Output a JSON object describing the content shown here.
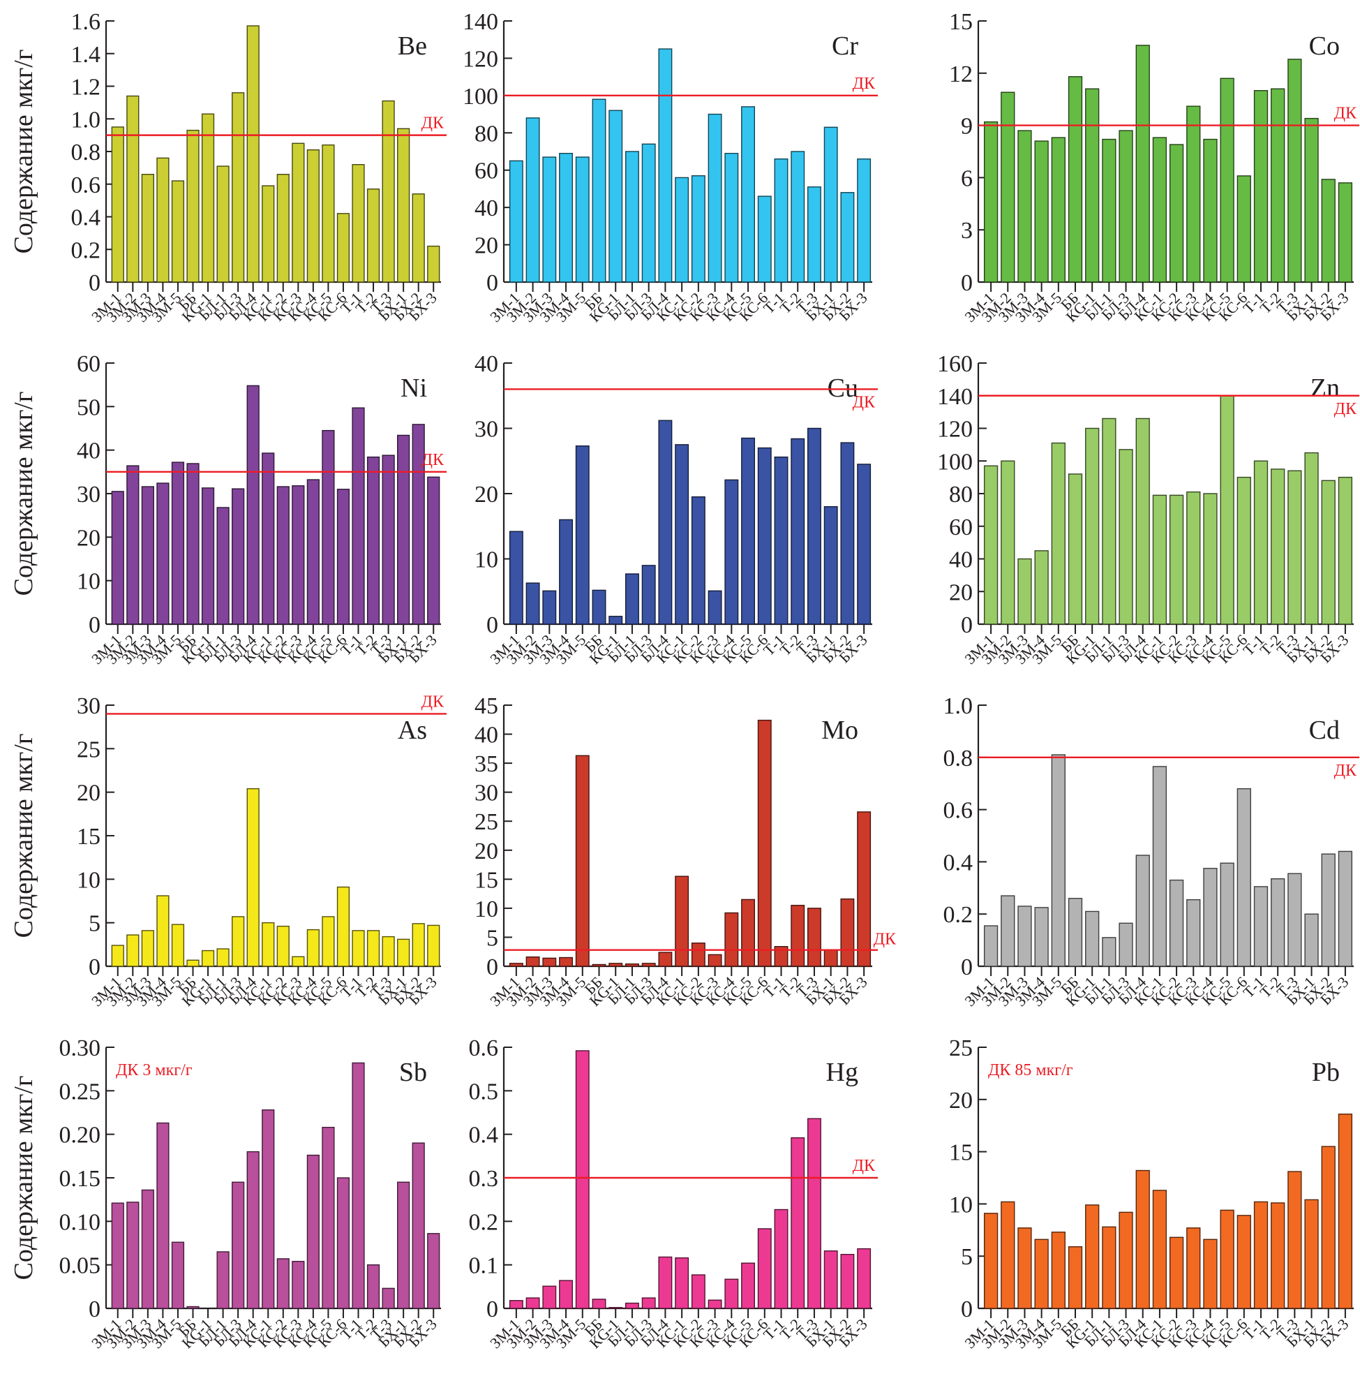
{
  "figure": {
    "ylabel": "Содержание мкг/г",
    "limit_label": "ДК"
  },
  "chart_data": [
    {
      "type": "bar",
      "title": "Be",
      "color": "#cbcf33",
      "xlabel": "",
      "ylabel": "Содержание мкг/г",
      "categories": [
        "ЗМ-1",
        "ЗМ-2",
        "ЗМ-3",
        "ЗМ-4",
        "ЗМ-5",
        "ББ",
        "КG-1",
        "БЛ-1",
        "БЛ-3",
        "БЛ-4",
        "КС-1",
        "КС-2",
        "КС-3",
        "КС-4",
        "КС-5",
        "КС-6",
        "Т-1",
        "Т-2",
        "Т-3",
        "БХ-1",
        "БХ-2",
        "БХ-3"
      ],
      "values": [
        0.95,
        1.14,
        0.66,
        0.76,
        0.62,
        0.93,
        1.03,
        0.71,
        1.16,
        1.57,
        0.59,
        0.66,
        0.85,
        0.81,
        0.84,
        0.42,
        0.72,
        0.57,
        1.11,
        0.94,
        0.54,
        0.22
      ],
      "ylim": [
        0,
        1.6
      ],
      "yticks": [
        "0",
        "0.2",
        "0.4",
        "0.6",
        "0.8",
        "1.0",
        "1.2",
        "1.4",
        "1.6"
      ],
      "limit": {
        "value": 0.9,
        "label": "ДК",
        "label_pos": "above-right"
      },
      "show_ylabel": true
    },
    {
      "type": "bar",
      "title": "Cr",
      "color": "#33c4f0",
      "xlabel": "",
      "ylabel": "",
      "categories": [
        "ЗМ-1",
        "ЗМ-2",
        "ЗМ-3",
        "ЗМ-4",
        "ЗМ-5",
        "ББ",
        "КG-1",
        "БЛ-1",
        "БЛ-3",
        "БЛ-4",
        "КС-1",
        "КС-2",
        "КС-3",
        "КС-4",
        "КС-5",
        "КС-6",
        "Т-1",
        "Т-2",
        "Т-3",
        "БХ-1",
        "БХ-2",
        "БХ-3"
      ],
      "values": [
        65,
        88,
        67,
        69,
        67,
        98,
        92,
        70,
        74,
        125,
        56,
        57,
        90,
        69,
        94,
        46,
        66,
        70,
        51,
        83,
        48,
        66
      ],
      "ylim": [
        0,
        140
      ],
      "yticks": [
        "0",
        "20",
        "40",
        "60",
        "80",
        "100",
        "120",
        "140"
      ],
      "limit": {
        "value": 100,
        "label": "ДК",
        "label_pos": "above-right"
      },
      "show_ylabel": false
    },
    {
      "type": "bar",
      "title": "Co",
      "color": "#66bb44",
      "xlabel": "",
      "ylabel": "",
      "categories": [
        "ЗМ-1",
        "ЗМ-2",
        "ЗМ-3",
        "ЗМ-4",
        "ЗМ-5",
        "ББ",
        "КG-1",
        "БЛ-1",
        "БЛ-3",
        "БЛ-4",
        "КС-1",
        "КС-2",
        "КС-3",
        "КС-4",
        "КС-5",
        "КС-6",
        "Т-1",
        "Т-2",
        "Т-3",
        "БХ-1",
        "БХ-2",
        "БХ-3"
      ],
      "values": [
        9.2,
        10.9,
        8.7,
        8.1,
        8.3,
        11.8,
        11.1,
        8.2,
        8.7,
        13.6,
        8.3,
        7.9,
        10.1,
        8.2,
        11.7,
        6.1,
        11.0,
        11.1,
        12.8,
        9.4,
        5.9,
        5.7
      ],
      "ylim": [
        0,
        15
      ],
      "yticks": [
        "0",
        "3",
        "6",
        "9",
        "12",
        "15"
      ],
      "limit": {
        "value": 9,
        "label": "ДК",
        "label_pos": "above-right"
      },
      "show_ylabel": false
    },
    {
      "type": "bar",
      "title": "Ni",
      "color": "#82449a",
      "xlabel": "",
      "ylabel": "Содержание мкг/г",
      "categories": [
        "ЗМ-1",
        "ЗМ-2",
        "ЗМ-3",
        "ЗМ-4",
        "ЗМ-5",
        "ББ",
        "КG-1",
        "БЛ-1",
        "БЛ-3",
        "БЛ-4",
        "КС-1",
        "КС-2",
        "КС-3",
        "КС-4",
        "КС-5",
        "КС-6",
        "Т-1",
        "Т-2",
        "Т-3",
        "БХ-1",
        "БХ-2",
        "БХ-3"
      ],
      "values": [
        30.5,
        36.4,
        31.6,
        32.4,
        37.2,
        36.9,
        31.3,
        26.8,
        31.1,
        54.8,
        39.3,
        31.6,
        31.8,
        33.2,
        44.5,
        31.0,
        49.7,
        38.4,
        38.8,
        43.4,
        45.9,
        33.8
      ],
      "ylim": [
        0,
        60
      ],
      "yticks": [
        "0",
        "10",
        "20",
        "30",
        "40",
        "50",
        "60"
      ],
      "limit": {
        "value": 35,
        "label": "ДК",
        "label_pos": "above-right"
      },
      "show_ylabel": true
    },
    {
      "type": "bar",
      "title": "Cu",
      "color": "#3a53a4",
      "xlabel": "",
      "ylabel": "",
      "categories": [
        "ЗМ-1",
        "ЗМ-2",
        "ЗМ-3",
        "ЗМ-4",
        "ЗМ-5",
        "ББ",
        "КG-1",
        "БЛ-1",
        "БЛ-3",
        "БЛ-4",
        "КС-1",
        "КС-2",
        "КС-3",
        "КС-4",
        "КС-5",
        "КС-6",
        "Т-1",
        "Т-2",
        "Т-3",
        "БХ-1",
        "БХ-2",
        "БХ-3"
      ],
      "values": [
        14.2,
        6.3,
        5.1,
        16.0,
        27.3,
        5.2,
        1.2,
        7.7,
        9.0,
        31.2,
        27.5,
        19.5,
        5.1,
        22.1,
        28.5,
        27.0,
        25.6,
        28.4,
        30.0,
        18.0,
        27.8,
        24.5
      ],
      "ylim": [
        0,
        40
      ],
      "yticks": [
        "0",
        "10",
        "20",
        "30",
        "40"
      ],
      "limit": {
        "value": 36,
        "label": "ДК",
        "label_pos": "below-right"
      },
      "show_ylabel": false
    },
    {
      "type": "bar",
      "title": "Zn",
      "color": "#99cc66",
      "xlabel": "",
      "ylabel": "",
      "categories": [
        "ЗМ-1",
        "ЗМ-2",
        "ЗМ-3",
        "ЗМ-4",
        "ЗМ-5",
        "ББ",
        "КG-1",
        "БЛ-1",
        "БЛ-3",
        "БЛ-4",
        "КС-1",
        "КС-2",
        "КС-3",
        "КС-4",
        "КС-5",
        "КС-6",
        "Т-1",
        "Т-2",
        "Т-3",
        "БХ-1",
        "БХ-2",
        "БХ-3"
      ],
      "values": [
        97,
        100,
        40,
        45,
        111,
        92,
        120,
        126,
        107,
        126,
        79,
        79,
        81,
        80,
        140,
        90,
        100,
        95,
        94,
        105,
        88,
        90
      ],
      "ylim": [
        0,
        160
      ],
      "yticks": [
        "0",
        "20",
        "40",
        "60",
        "80",
        "100",
        "120",
        "140",
        "160"
      ],
      "limit": {
        "value": 140,
        "label": "ДК",
        "label_pos": "below-right"
      },
      "show_ylabel": false
    },
    {
      "type": "bar",
      "title": "As",
      "color": "#f5e81a",
      "xlabel": "",
      "ylabel": "Содержание мкг/г",
      "categories": [
        "ЗМ-1",
        "ЗМ-2",
        "ЗМ-3",
        "ЗМ-4",
        "ЗМ-5",
        "ББ",
        "КG-1",
        "БЛ-1",
        "БЛ-3",
        "БЛ-4",
        "КС-1",
        "КС-2",
        "КС-3",
        "КС-4",
        "КС-5",
        "КС-6",
        "Т-1",
        "Т-2",
        "Т-3",
        "БХ-1",
        "БХ-2",
        "БХ-3"
      ],
      "values": [
        2.4,
        3.6,
        4.1,
        8.1,
        4.8,
        0.7,
        1.8,
        2.0,
        5.7,
        20.4,
        5.0,
        4.6,
        1.1,
        4.2,
        5.7,
        9.1,
        4.1,
        4.1,
        3.4,
        3.1,
        4.9,
        4.7
      ],
      "ylim": [
        0,
        30
      ],
      "yticks": [
        "0",
        "5",
        "10",
        "15",
        "20",
        "25",
        "30"
      ],
      "limit": {
        "value": 29,
        "label": "ДК",
        "label_pos": "above-right"
      },
      "show_ylabel": true
    },
    {
      "type": "bar",
      "title": "Mo",
      "color": "#cc3a2a",
      "xlabel": "",
      "ylabel": "",
      "categories": [
        "ЗМ-1",
        "ЗМ-2",
        "ЗМ-3",
        "ЗМ-4",
        "ЗМ-5",
        "ББ",
        "КG-1",
        "БЛ-1",
        "БЛ-3",
        "БЛ-4",
        "КС-1",
        "КС-2",
        "КС-3",
        "КС-4",
        "КС-5",
        "КС-6",
        "Т-1",
        "Т-2",
        "Т-3",
        "БХ-1",
        "БХ-2",
        "БХ-3"
      ],
      "values": [
        0.5,
        1.6,
        1.4,
        1.5,
        36.3,
        0.3,
        0.5,
        0.4,
        0.5,
        2.4,
        15.5,
        4.0,
        2.0,
        9.2,
        11.5,
        42.4,
        3.4,
        10.5,
        10.0,
        2.8,
        11.6,
        26.6
      ],
      "ylim": [
        0,
        45
      ],
      "yticks": [
        "0",
        "5",
        "10",
        "15",
        "20",
        "25",
        "30",
        "35",
        "40",
        "45"
      ],
      "limit": {
        "value": 2.8,
        "label": "ДК",
        "label_pos": "outside-right"
      },
      "show_ylabel": false
    },
    {
      "type": "bar",
      "title": "Cd",
      "color": "#b3b3b3",
      "xlabel": "",
      "ylabel": "",
      "categories": [
        "ЗМ-1",
        "ЗМ-2",
        "ЗМ-3",
        "ЗМ-4",
        "ЗМ-5",
        "ББ",
        "КG-1",
        "БЛ-1",
        "БЛ-3",
        "БЛ-4",
        "КС-1",
        "КС-2",
        "КС-3",
        "КС-4",
        "КС-5",
        "КС-6",
        "Т-1",
        "Т-2",
        "Т-3",
        "БХ-1",
        "БХ-2",
        "БХ-3"
      ],
      "values": [
        0.155,
        0.27,
        0.23,
        0.225,
        0.81,
        0.26,
        0.21,
        0.11,
        0.165,
        0.425,
        0.765,
        0.33,
        0.255,
        0.375,
        0.395,
        0.68,
        0.305,
        0.335,
        0.355,
        0.2,
        0.43,
        0.44
      ],
      "ylim": [
        0,
        1.0
      ],
      "yticks": [
        "0",
        "0.2",
        "0.4",
        "0.6",
        "0.8",
        "1.0"
      ],
      "limit": {
        "value": 0.8,
        "label": "ДК",
        "label_pos": "below-right"
      },
      "show_ylabel": false
    },
    {
      "type": "bar",
      "title": "Sb",
      "color": "#b8509c",
      "xlabel": "",
      "ylabel": "Содержание мкг/г",
      "categories": [
        "ЗМ-1",
        "ЗМ-2",
        "ЗМ-3",
        "ЗМ-4",
        "ЗМ-5",
        "ББ",
        "КG-1",
        "БЛ-1",
        "БЛ-3",
        "БЛ-4",
        "КС-1",
        "КС-2",
        "КС-3",
        "КС-4",
        "КС-5",
        "КС-6",
        "Т-1",
        "Т-2",
        "Т-3",
        "БХ-1",
        "БХ-2",
        "БХ-3"
      ],
      "values": [
        0.121,
        0.122,
        0.136,
        0.213,
        0.076,
        0.002,
        0,
        0.065,
        0.145,
        0.18,
        0.228,
        0.057,
        0.054,
        0.176,
        0.208,
        0.15,
        0.282,
        0.05,
        0.023,
        0.145,
        0.19,
        0.086
      ],
      "ylim": [
        0,
        0.3
      ],
      "yticks": [
        "0",
        "0.05",
        "0.10",
        "0.15",
        "0.20",
        "0.25",
        "0.30"
      ],
      "limit": null,
      "annotation": "ДК 3 мкг/г",
      "show_ylabel": true
    },
    {
      "type": "bar",
      "title": "Hg",
      "color": "#ec3a93",
      "xlabel": "",
      "ylabel": "",
      "categories": [
        "ЗМ-1",
        "ЗМ-2",
        "ЗМ-3",
        "ЗМ-4",
        "ЗМ-5",
        "ББ",
        "КG-1",
        "БЛ-1",
        "БЛ-3",
        "БЛ-4",
        "КС-1",
        "КС-2",
        "КС-3",
        "КС-4",
        "КС-5",
        "КС-6",
        "Т-1",
        "Т-2",
        "Т-3",
        "БХ-1",
        "БХ-2",
        "БХ-3"
      ],
      "values": [
        0.018,
        0.024,
        0.051,
        0.064,
        0.592,
        0.021,
        0.002,
        0.012,
        0.024,
        0.118,
        0.116,
        0.077,
        0.019,
        0.067,
        0.104,
        0.183,
        0.227,
        0.392,
        0.436,
        0.132,
        0.124,
        0.137
      ],
      "ylim": [
        0,
        0.6
      ],
      "yticks": [
        "0",
        "0.1",
        "0.2",
        "0.3",
        "0.4",
        "0.5",
        "0.6"
      ],
      "limit": {
        "value": 0.3,
        "label": "ДК",
        "label_pos": "above-right"
      },
      "show_ylabel": false
    },
    {
      "type": "bar",
      "title": "Pb",
      "color": "#f26a22",
      "xlabel": "",
      "ylabel": "",
      "categories": [
        "ЗМ-1",
        "ЗМ-2",
        "ЗМ-3",
        "ЗМ-4",
        "ЗМ-5",
        "ББ",
        "КG-1",
        "БЛ-1",
        "БЛ-3",
        "БЛ-4",
        "КС-1",
        "КС-2",
        "КС-3",
        "КС-4",
        "КС-5",
        "КС-6",
        "Т-1",
        "Т-2",
        "Т-3",
        "БХ-1",
        "БХ-2",
        "БХ-3"
      ],
      "values": [
        9.1,
        10.2,
        7.7,
        6.6,
        7.3,
        5.9,
        9.9,
        7.8,
        9.2,
        13.2,
        11.3,
        6.8,
        7.7,
        6.6,
        9.4,
        8.9,
        10.2,
        10.1,
        13.1,
        10.4,
        15.5,
        18.6
      ],
      "ylim": [
        0,
        25
      ],
      "yticks": [
        "0",
        "5",
        "10",
        "15",
        "20",
        "25"
      ],
      "limit": null,
      "annotation": "ДК 85 мкг/г",
      "show_ylabel": false
    }
  ]
}
